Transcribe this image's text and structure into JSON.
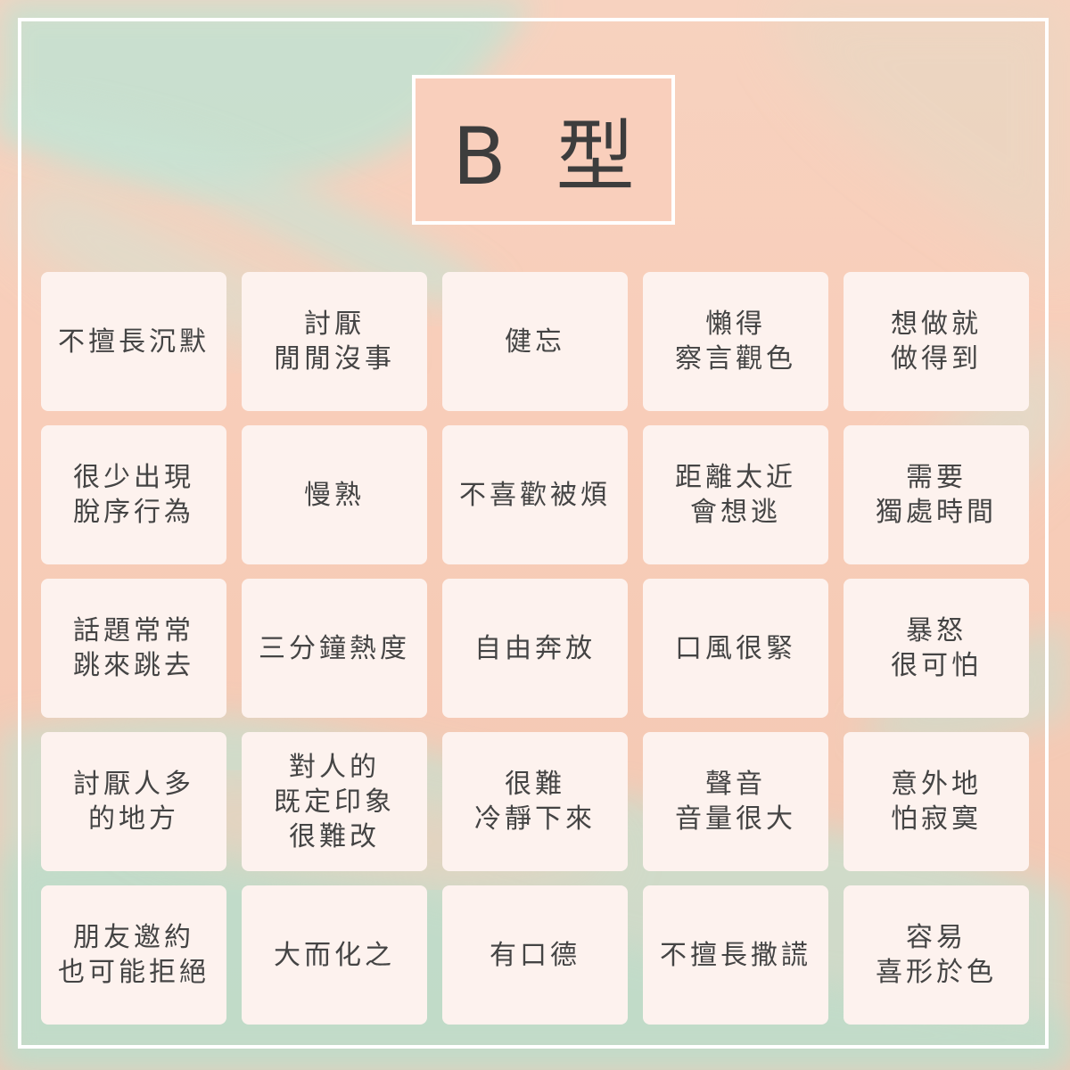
{
  "title": "B 型",
  "colors": {
    "background_peach": "#f8cdb9",
    "brush_mint": "#bfe0cf",
    "card_fill": "#fdf2ee",
    "frame": "#ffffff",
    "text": "#444444"
  },
  "cards": [
    {
      "lines": [
        "不擅長沉默"
      ]
    },
    {
      "lines": [
        "討厭",
        "閒閒沒事"
      ]
    },
    {
      "lines": [
        "健忘"
      ]
    },
    {
      "lines": [
        "懶得",
        "察言觀色"
      ]
    },
    {
      "lines": [
        "想做就",
        "做得到"
      ]
    },
    {
      "lines": [
        "很少出現",
        "脫序行為"
      ]
    },
    {
      "lines": [
        "慢熟"
      ]
    },
    {
      "lines": [
        "不喜歡被煩"
      ]
    },
    {
      "lines": [
        "距離太近",
        "會想逃"
      ]
    },
    {
      "lines": [
        "需要",
        "獨處時間"
      ]
    },
    {
      "lines": [
        "話題常常",
        "跳來跳去"
      ]
    },
    {
      "lines": [
        "三分鐘熱度"
      ]
    },
    {
      "lines": [
        "自由奔放"
      ]
    },
    {
      "lines": [
        "口風很緊"
      ]
    },
    {
      "lines": [
        "暴怒",
        "很可怕"
      ]
    },
    {
      "lines": [
        "討厭人多",
        "的地方"
      ]
    },
    {
      "lines": [
        "對人的",
        "既定印象",
        "很難改"
      ]
    },
    {
      "lines": [
        "很難",
        "冷靜下來"
      ]
    },
    {
      "lines": [
        "聲音",
        "音量很大"
      ]
    },
    {
      "lines": [
        "意外地",
        "怕寂寞"
      ]
    },
    {
      "lines": [
        "朋友邀約",
        "也可能拒絕"
      ]
    },
    {
      "lines": [
        "大而化之"
      ]
    },
    {
      "lines": [
        "有口德"
      ]
    },
    {
      "lines": [
        "不擅長撒謊"
      ]
    },
    {
      "lines": [
        "容易",
        "喜形於色"
      ]
    }
  ]
}
